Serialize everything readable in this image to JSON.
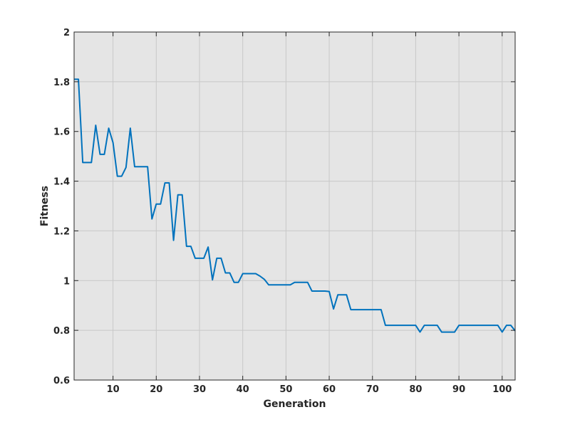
{
  "chart_data": {
    "type": "line",
    "title": "",
    "xlabel": "Generation",
    "ylabel": "Fitness",
    "xlim": [
      1,
      103
    ],
    "ylim": [
      0.6,
      2
    ],
    "xticks": [
      10,
      20,
      30,
      40,
      50,
      60,
      70,
      80,
      90,
      100
    ],
    "yticks": [
      0.6,
      0.8,
      1,
      1.2,
      1.4,
      1.6,
      1.8,
      2
    ],
    "ytick_labels": [
      "0.6",
      "0.8",
      "1",
      "1.2",
      "1.4",
      "1.6",
      "1.8",
      "2"
    ],
    "grid": true,
    "colors": {
      "plot_bg": "#e5e5e5",
      "grid": "#c8c8c8",
      "line": "#0072bd",
      "axis": "#262626"
    },
    "series": [
      {
        "x": [
          1,
          2,
          3,
          4,
          5,
          6,
          7,
          8,
          9,
          10,
          11,
          12,
          13,
          14,
          15,
          16,
          17,
          18,
          19,
          20,
          21,
          22,
          23,
          24,
          25,
          26,
          27,
          28,
          29,
          30,
          31,
          32,
          33,
          34,
          35,
          36,
          37,
          38,
          39,
          40,
          41,
          42,
          43,
          44,
          45,
          46,
          47,
          48,
          49,
          50,
          51,
          52,
          53,
          54,
          55,
          56,
          57,
          58,
          59,
          60,
          61,
          62,
          63,
          64,
          65,
          66,
          67,
          68,
          69,
          70,
          71,
          72,
          73,
          74,
          75,
          76,
          77,
          78,
          79,
          80,
          81,
          82,
          83,
          84,
          85,
          86,
          87,
          88,
          89,
          90,
          91,
          92,
          93,
          94,
          95,
          96,
          97,
          98,
          99,
          100,
          101,
          102,
          103
        ],
        "y": [
          1.81,
          1.81,
          1.475,
          1.475,
          1.475,
          1.625,
          1.508,
          1.508,
          1.613,
          1.555,
          1.42,
          1.42,
          1.455,
          1.613,
          1.458,
          1.458,
          1.458,
          1.458,
          1.248,
          1.308,
          1.308,
          1.393,
          1.393,
          1.162,
          1.345,
          1.345,
          1.138,
          1.138,
          1.09,
          1.09,
          1.09,
          1.135,
          1.003,
          1.09,
          1.09,
          1.031,
          1.031,
          0.993,
          0.993,
          1.028,
          1.028,
          1.028,
          1.028,
          1.018,
          1.005,
          0.983,
          0.983,
          0.983,
          0.983,
          0.983,
          0.983,
          0.993,
          0.993,
          0.993,
          0.993,
          0.958,
          0.958,
          0.958,
          0.958,
          0.956,
          0.886,
          0.943,
          0.943,
          0.943,
          0.883,
          0.883,
          0.883,
          0.883,
          0.883,
          0.883,
          0.883,
          0.883,
          0.82,
          0.82,
          0.82,
          0.82,
          0.82,
          0.82,
          0.82,
          0.82,
          0.793,
          0.82,
          0.82,
          0.82,
          0.82,
          0.793,
          0.793,
          0.793,
          0.793,
          0.82,
          0.82,
          0.82,
          0.82,
          0.82,
          0.82,
          0.82,
          0.82,
          0.82,
          0.82,
          0.793,
          0.82,
          0.82,
          0.798
        ]
      }
    ]
  }
}
